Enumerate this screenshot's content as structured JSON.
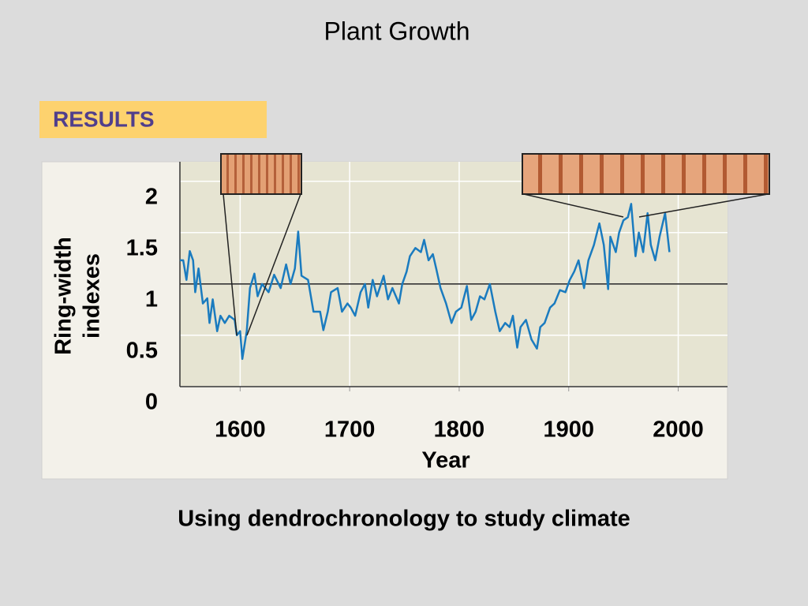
{
  "chart_data": {
    "type": "line",
    "title": "Plant Growth",
    "section_label": "RESULTS",
    "y_label": [
      "Ring-width",
      "indexes"
    ],
    "x_label": "Year",
    "caption": "Using dendrochronology to study climate",
    "xlim": [
      1545,
      2045
    ],
    "ylim": [
      0,
      2.19
    ],
    "xticks": [
      1600,
      1700,
      1800,
      1900,
      2000
    ],
    "yticks": [
      0,
      0.5,
      1,
      1.5,
      2
    ],
    "hline": 1,
    "grid": true,
    "series": [
      {
        "color": "#1a7bbf",
        "x": [
          1545,
          1548,
          1551,
          1554,
          1557,
          1559,
          1562,
          1566,
          1570,
          1572,
          1575,
          1579,
          1582,
          1586,
          1590,
          1595,
          1597,
          1600,
          1602,
          1606,
          1609,
          1613,
          1616,
          1620,
          1626,
          1631,
          1637,
          1642,
          1646,
          1650,
          1653,
          1656,
          1662,
          1667,
          1673,
          1676,
          1680,
          1683,
          1689,
          1693,
          1698,
          1701,
          1705,
          1710,
          1714,
          1717,
          1721,
          1725,
          1731,
          1735,
          1739,
          1745,
          1748,
          1752,
          1755,
          1760,
          1765,
          1768,
          1772,
          1776,
          1779,
          1783,
          1788,
          1793,
          1797,
          1802,
          1807,
          1811,
          1815,
          1819,
          1823,
          1828,
          1833,
          1837,
          1842,
          1846,
          1849,
          1853,
          1856,
          1861,
          1866,
          1871,
          1874,
          1878,
          1883,
          1887,
          1892,
          1897,
          1901,
          1905,
          1909,
          1914,
          1918,
          1923,
          1928,
          1932,
          1936,
          1938,
          1943,
          1946,
          1950,
          1954,
          1957,
          1961,
          1964,
          1968,
          1972,
          1975,
          1979,
          1983,
          1988,
          1992
        ],
        "values": [
          1.23,
          1.23,
          1.04,
          1.32,
          1.23,
          0.92,
          1.15,
          0.81,
          0.86,
          0.62,
          0.85,
          0.54,
          0.69,
          0.62,
          0.69,
          0.65,
          0.5,
          0.54,
          0.27,
          0.54,
          0.96,
          1.1,
          0.88,
          1.0,
          0.92,
          1.09,
          0.96,
          1.19,
          1.0,
          1.15,
          1.51,
          1.08,
          1.04,
          0.73,
          0.73,
          0.55,
          0.73,
          0.92,
          0.96,
          0.73,
          0.81,
          0.77,
          0.69,
          0.92,
          1.0,
          0.77,
          1.04,
          0.88,
          1.08,
          0.85,
          0.96,
          0.81,
          1.0,
          1.12,
          1.27,
          1.35,
          1.31,
          1.43,
          1.23,
          1.29,
          1.15,
          0.96,
          0.81,
          0.62,
          0.73,
          0.77,
          0.98,
          0.65,
          0.73,
          0.88,
          0.85,
          1.0,
          0.73,
          0.54,
          0.62,
          0.58,
          0.69,
          0.38,
          0.58,
          0.65,
          0.46,
          0.37,
          0.58,
          0.62,
          0.77,
          0.81,
          0.94,
          0.92,
          1.04,
          1.12,
          1.23,
          0.96,
          1.23,
          1.38,
          1.59,
          1.38,
          0.95,
          1.46,
          1.31,
          1.5,
          1.62,
          1.65,
          1.78,
          1.27,
          1.5,
          1.31,
          1.69,
          1.38,
          1.23,
          1.46,
          1.69,
          1.31
        ]
      }
    ]
  }
}
